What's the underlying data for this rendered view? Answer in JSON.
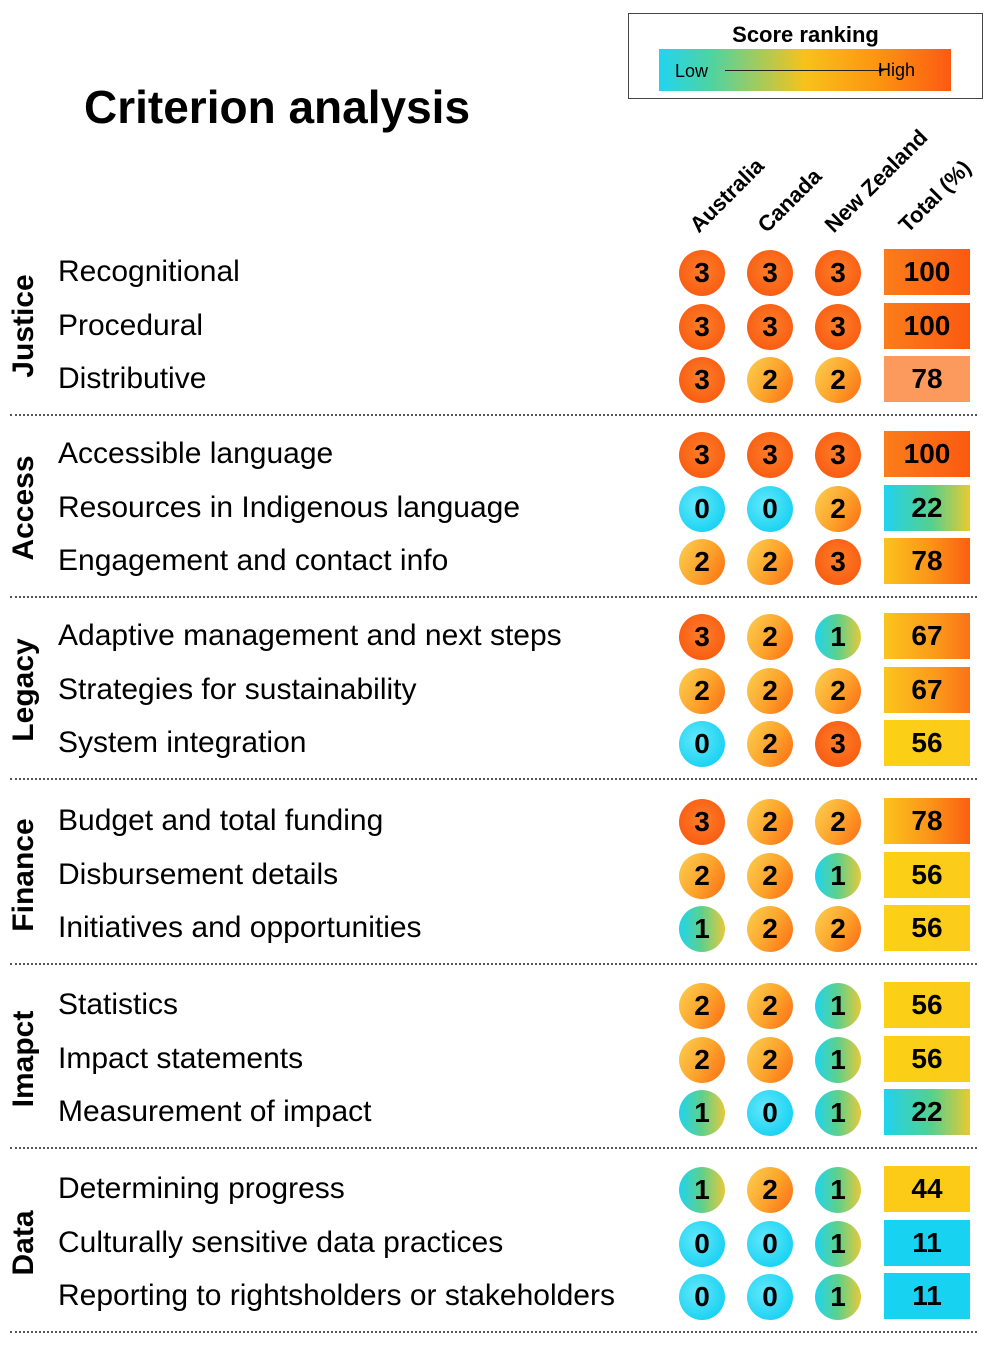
{
  "title": "Criterion analysis",
  "legend": {
    "title": "Score ranking",
    "low": "Low",
    "high": "High",
    "colors": [
      "#21d4f0",
      "#f7c21a",
      "#fb5a12"
    ]
  },
  "chart_data": {
    "type": "table",
    "columns": [
      "Australia",
      "Canada",
      "New Zealand",
      "Total (%)"
    ],
    "groups": [
      {
        "name": "Justice",
        "rows": [
          {
            "label": "Recognitional",
            "scores": [
              3,
              3,
              3
            ],
            "total": 100
          },
          {
            "label": "Procedural",
            "scores": [
              3,
              3,
              3
            ],
            "total": 100
          },
          {
            "label": "Distributive",
            "scores": [
              3,
              2,
              2
            ],
            "total": 78
          }
        ]
      },
      {
        "name": "Access",
        "rows": [
          {
            "label": "Accessible language",
            "scores": [
              3,
              3,
              3
            ],
            "total": 100
          },
          {
            "label": "Resources in Indigenous language",
            "scores": [
              0,
              0,
              2
            ],
            "total": 22
          },
          {
            "label": "Engagement and contact info",
            "scores": [
              2,
              2,
              3
            ],
            "total": 78
          }
        ]
      },
      {
        "name": "Legacy",
        "rows": [
          {
            "label": "Adaptive management and next steps",
            "scores": [
              3,
              2,
              1
            ],
            "total": 67
          },
          {
            "label": "Strategies for sustainability",
            "scores": [
              2,
              2,
              2
            ],
            "total": 67
          },
          {
            "label": "System integration",
            "scores": [
              0,
              2,
              3
            ],
            "total": 56
          }
        ]
      },
      {
        "name": "Finance",
        "rows": [
          {
            "label": "Budget and total funding",
            "scores": [
              3,
              2,
              2
            ],
            "total": 78
          },
          {
            "label": "Disbursement details",
            "scores": [
              2,
              2,
              1
            ],
            "total": 56
          },
          {
            "label": "Initiatives and opportunities",
            "scores": [
              1,
              2,
              2
            ],
            "total": 56
          }
        ]
      },
      {
        "name": "Imapct",
        "rows": [
          {
            "label": "Statistics",
            "scores": [
              2,
              2,
              1
            ],
            "total": 56
          },
          {
            "label": "Impact statements",
            "scores": [
              2,
              2,
              1
            ],
            "total": 56
          },
          {
            "label": "Measurement of impact",
            "scores": [
              1,
              0,
              1
            ],
            "total": 22
          }
        ]
      },
      {
        "name": "Data",
        "rows": [
          {
            "label": "Determining progress",
            "scores": [
              1,
              2,
              1
            ],
            "total": 44
          },
          {
            "label": "Culturally sensitive data practices",
            "scores": [
              0,
              0,
              1
            ],
            "total": 11
          },
          {
            "label": "Reporting to rightsholders or stakeholders",
            "scores": [
              0,
              0,
              1
            ],
            "total": 11
          }
        ]
      }
    ]
  }
}
